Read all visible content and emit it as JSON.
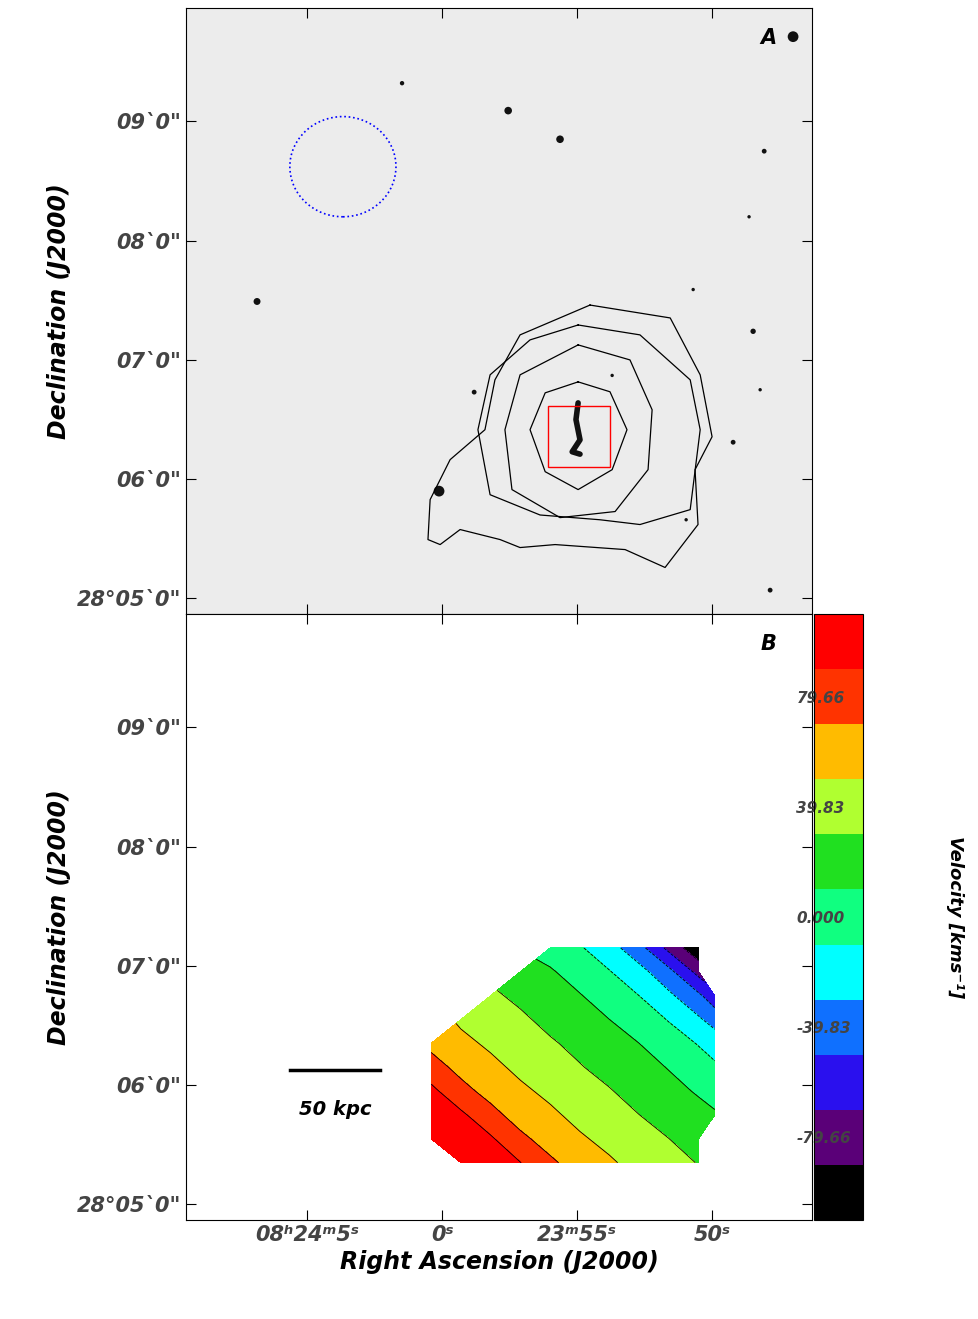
{
  "chart_data": [
    {
      "type": "image",
      "panel_label": "A",
      "ylabel": "Declination (J2000)",
      "xlim": [
        69.48,
        46.3
      ],
      "ylim": [
        4.87,
        9.95
      ],
      "xticks": [
        {
          "value": 65,
          "label": "08ʰ24ᵐ5ˢ"
        },
        {
          "value": 60,
          "label": "0ˢ"
        },
        {
          "value": 55,
          "label": "23ᵐ55ˢ"
        },
        {
          "value": 50,
          "label": "50ˢ"
        }
      ],
      "yticks": [
        {
          "value": 5,
          "label": "28°05`0\""
        },
        {
          "value": 6,
          "label": "06`0\""
        },
        {
          "value": 7,
          "label": "07`0\""
        },
        {
          "value": 8,
          "label": "08`0\""
        },
        {
          "value": 9,
          "label": "09`0\""
        }
      ],
      "tick_labels": "y",
      "sources": {
        "x": [
          47.0,
          57.55,
          55.63,
          48.07,
          61.48,
          66.85,
          48.48,
          48.63,
          58.81,
          49.22,
          60.11,
          50.7,
          47.85,
          53.7,
          50.96,
          48.22
        ],
        "y": [
          9.71,
          9.09,
          8.85,
          8.75,
          9.32,
          7.49,
          7.24,
          8.2,
          6.73,
          6.31,
          5.9,
          7.59,
          5.07,
          6.87,
          5.66,
          6.75
        ],
        "size": [
          60,
          30,
          30,
          12,
          10,
          25,
          15,
          6,
          12,
          12,
          60,
          6,
          12,
          6,
          6,
          6
        ]
      },
      "contours": [
        [
          [
            54.96,
            6.816
          ],
          [
            53.78,
            6.733
          ],
          [
            53.15,
            6.415
          ],
          [
            53.7,
            6.08
          ],
          [
            54.96,
            5.913
          ],
          [
            56.18,
            6.063
          ],
          [
            56.74,
            6.415
          ],
          [
            56.18,
            6.724
          ],
          [
            54.96,
            6.816
          ]
        ],
        [
          [
            54.96,
            7.126
          ],
          [
            53.04,
            7.0
          ],
          [
            52.22,
            6.582
          ],
          [
            52.37,
            6.08
          ],
          [
            53.59,
            5.729
          ],
          [
            55.63,
            5.678
          ],
          [
            57.41,
            5.913
          ],
          [
            57.67,
            6.415
          ],
          [
            57.11,
            6.875
          ],
          [
            54.96,
            7.126
          ]
        ],
        [
          [
            54.96,
            7.293
          ],
          [
            52.67,
            7.21
          ],
          [
            50.81,
            6.833
          ],
          [
            50.44,
            6.415
          ],
          [
            50.81,
            5.745
          ],
          [
            52.67,
            5.62
          ],
          [
            54.15,
            5.66
          ],
          [
            56.37,
            5.7
          ],
          [
            58.22,
            5.87
          ],
          [
            58.67,
            6.415
          ],
          [
            58.22,
            6.875
          ],
          [
            56.74,
            7.168
          ],
          [
            54.96,
            7.293
          ]
        ],
        [
          [
            54.52,
            7.46
          ],
          [
            51.55,
            7.352
          ],
          [
            50.44,
            6.875
          ],
          [
            50.0,
            6.356
          ],
          [
            50.63,
            6.08
          ],
          [
            50.52,
            5.62
          ],
          [
            51.74,
            5.26
          ],
          [
            53.22,
            5.41
          ],
          [
            55.81,
            5.452
          ],
          [
            57.11,
            5.427
          ],
          [
            57.85,
            5.494
          ],
          [
            59.33,
            5.578
          ],
          [
            60.07,
            5.452
          ],
          [
            60.52,
            5.494
          ],
          [
            60.44,
            5.829
          ],
          [
            59.7,
            6.164
          ],
          [
            58.41,
            6.415
          ],
          [
            58.04,
            6.833
          ],
          [
            57.11,
            7.21
          ],
          [
            54.52,
            7.46
          ]
        ]
      ],
      "contour_color": "#000000",
      "galaxy": {
        "x": [
          54.96,
          55.04,
          54.89,
          55.18,
          54.89
        ],
        "y": [
          6.64,
          6.5,
          6.33,
          6.23,
          6.21
        ]
      },
      "box": {
        "x": [
          56.07,
          53.78
        ],
        "y": [
          6.1,
          6.61
        ],
        "color": "#ff0000"
      },
      "beam": {
        "x": 63.67,
        "y": 8.62,
        "width": 3.93,
        "height": 0.84,
        "color": "#0000ff"
      }
    },
    {
      "type": "contourf",
      "panel_label": "B",
      "xlabel": "Right Ascension (J2000)",
      "ylabel": "Declination (J2000)",
      "xlim": [
        69.48,
        46.3
      ],
      "ylim": [
        4.87,
        9.95
      ],
      "xticks": [
        {
          "value": 65,
          "label": "08ʰ24ᵐ5ˢ"
        },
        {
          "value": 60,
          "label": "0ˢ"
        },
        {
          "value": 55,
          "label": "23ᵐ55ˢ"
        },
        {
          "value": 50,
          "label": "50ˢ"
        }
      ],
      "yticks": [
        {
          "value": 5,
          "label": "28°05`0\""
        },
        {
          "value": 6,
          "label": "06`0\""
        },
        {
          "value": 7,
          "label": "07`0\""
        },
        {
          "value": 8,
          "label": "08`0\""
        },
        {
          "value": 9,
          "label": "09`0\""
        }
      ],
      "x": [
        60.4,
        59.3,
        58.2,
        57.1,
        56.0,
        54.9,
        53.8,
        52.7,
        51.6,
        50.5,
        49.9
      ],
      "y": [
        7.15,
        6.95,
        6.75,
        6.55,
        6.35,
        6.15,
        5.95,
        5.75,
        5.55,
        5.35
      ],
      "cells": [
        [
          null,
          null,
          null,
          null,
          2,
          -8,
          -22,
          -43,
          -75,
          -105,
          null
        ],
        [
          null,
          null,
          null,
          19,
          12,
          2,
          -9,
          -23,
          -44,
          -76,
          null
        ],
        [
          null,
          null,
          33,
          26,
          18,
          11,
          1,
          -10,
          -26,
          -46,
          -62
        ],
        [
          null,
          47,
          40,
          33,
          25,
          18,
          10,
          0,
          -11,
          -27,
          -38
        ],
        [
          64,
          54,
          47,
          39,
          32,
          25,
          17,
          10,
          -1,
          -11,
          -18
        ],
        [
          79,
          63,
          54,
          46,
          39,
          31,
          24,
          17,
          9,
          -2,
          -7
        ],
        [
          94,
          77,
          62,
          53,
          46,
          38,
          31,
          23,
          16,
          8,
          3
        ],
        [
          105,
          93,
          77,
          60,
          53,
          45,
          38,
          30,
          23,
          16,
          12
        ],
        [
          105,
          105,
          92,
          75,
          60,
          52,
          45,
          37,
          30,
          22,
          null
        ],
        [
          null,
          105,
          105,
          90,
          74,
          59,
          52,
          44,
          37,
          29,
          null
        ]
      ],
      "levels": [
        -109.54,
        -89.62,
        -69.7,
        -49.79,
        -29.87,
        -9.96,
        9.96,
        29.87,
        49.79,
        69.7,
        89.62,
        109.54
      ],
      "colors": [
        "#000000",
        "#5a0078",
        "#2a10ee",
        "#0f70ff",
        "#00ffff",
        "#10ff80",
        "#20e020",
        "#b0ff30",
        "#ffbb00",
        "#ff3300",
        "#ff0000"
      ],
      "colorbar": {
        "label": "Velocity [kms⁻¹]",
        "ticks": [
          -79.66,
          -39.83,
          {
            "value": 0,
            "label": "0.000"
          },
          39.83,
          79.66
        ]
      },
      "scale_bar": {
        "label": "50 kpc",
        "x": [
          65.63,
          62.3
        ],
        "y": 6.13
      }
    }
  ]
}
